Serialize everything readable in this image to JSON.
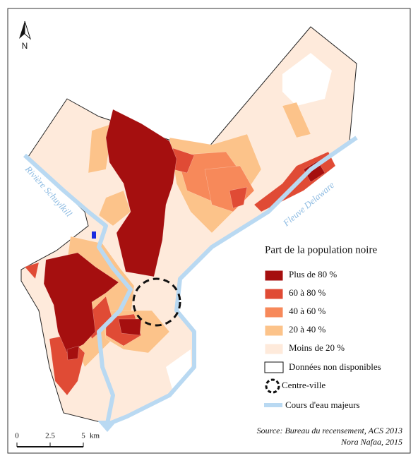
{
  "north": "N",
  "rivers": [
    "Rivière Schuylkill",
    "Fleuve Delaware"
  ],
  "legend": {
    "title": "Part de la population noire",
    "classes": [
      {
        "label": "Plus de 80 %",
        "color": "#a50f0f"
      },
      {
        "label": "60 à 80 %",
        "color": "#e04b35"
      },
      {
        "label": "40 à 60 %",
        "color": "#f7895a"
      },
      {
        "label": "20 à 40 %",
        "color": "#fcc38a"
      },
      {
        "label": "Moins de 20 %",
        "color": "#feeadb"
      }
    ],
    "no_data": "Données non disponibles",
    "centre": "Centre-ville",
    "rivers": "Cours d'eau majeurs"
  },
  "scale": {
    "ticks": [
      0,
      2.5,
      5
    ],
    "unit": "km"
  },
  "source": [
    "Source: Bureau du recensement, ACS 2013",
    "Nora Nafaa, 2015"
  ]
}
